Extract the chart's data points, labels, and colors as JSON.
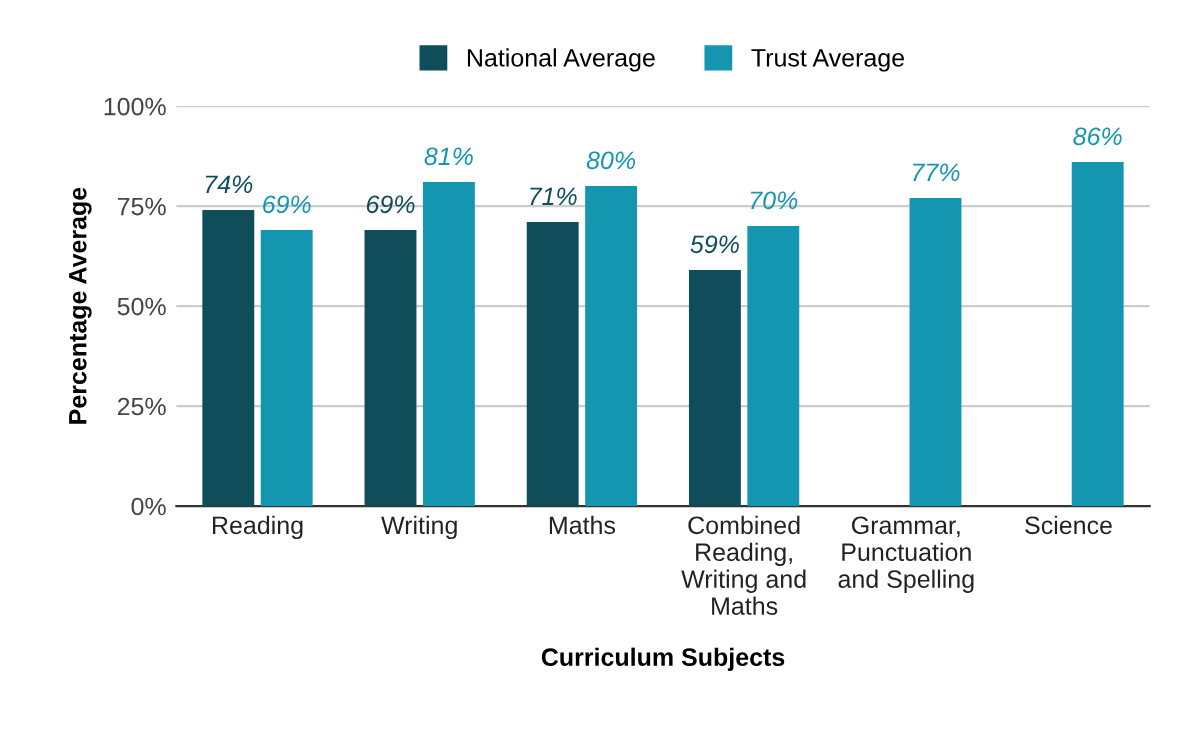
{
  "chart_data": {
    "type": "bar",
    "xlabel": "Curriculum Subjects",
    "ylabel": "Percentage Average",
    "categories": [
      "Reading",
      "Writing",
      "Maths",
      "Combined\nReading,\nWriting and\nMaths",
      "Grammar,\nPunctuation\nand Spelling",
      "Science"
    ],
    "series": [
      {
        "name": "National Average",
        "color": "#0f4d5b",
        "values": [
          74,
          69,
          71,
          59,
          null,
          null
        ],
        "value_labels": [
          "74%",
          "69%",
          "71%",
          "59%",
          null,
          null
        ]
      },
      {
        "name": "Trust Average",
        "color": "#1596b0",
        "values": [
          69,
          81,
          80,
          70,
          77,
          86
        ],
        "value_labels": [
          "69%",
          "81%",
          "80%",
          "70%",
          "77%",
          "86%"
        ]
      }
    ],
    "ylim": [
      0,
      100
    ],
    "yticks": [
      {
        "value": 0,
        "label": "0%"
      },
      {
        "value": 25,
        "label": "25%"
      },
      {
        "value": 50,
        "label": "50%"
      },
      {
        "value": 75,
        "label": "75%"
      },
      {
        "value": 100,
        "label": "100%"
      }
    ],
    "grid": "y",
    "legend": "top"
  }
}
